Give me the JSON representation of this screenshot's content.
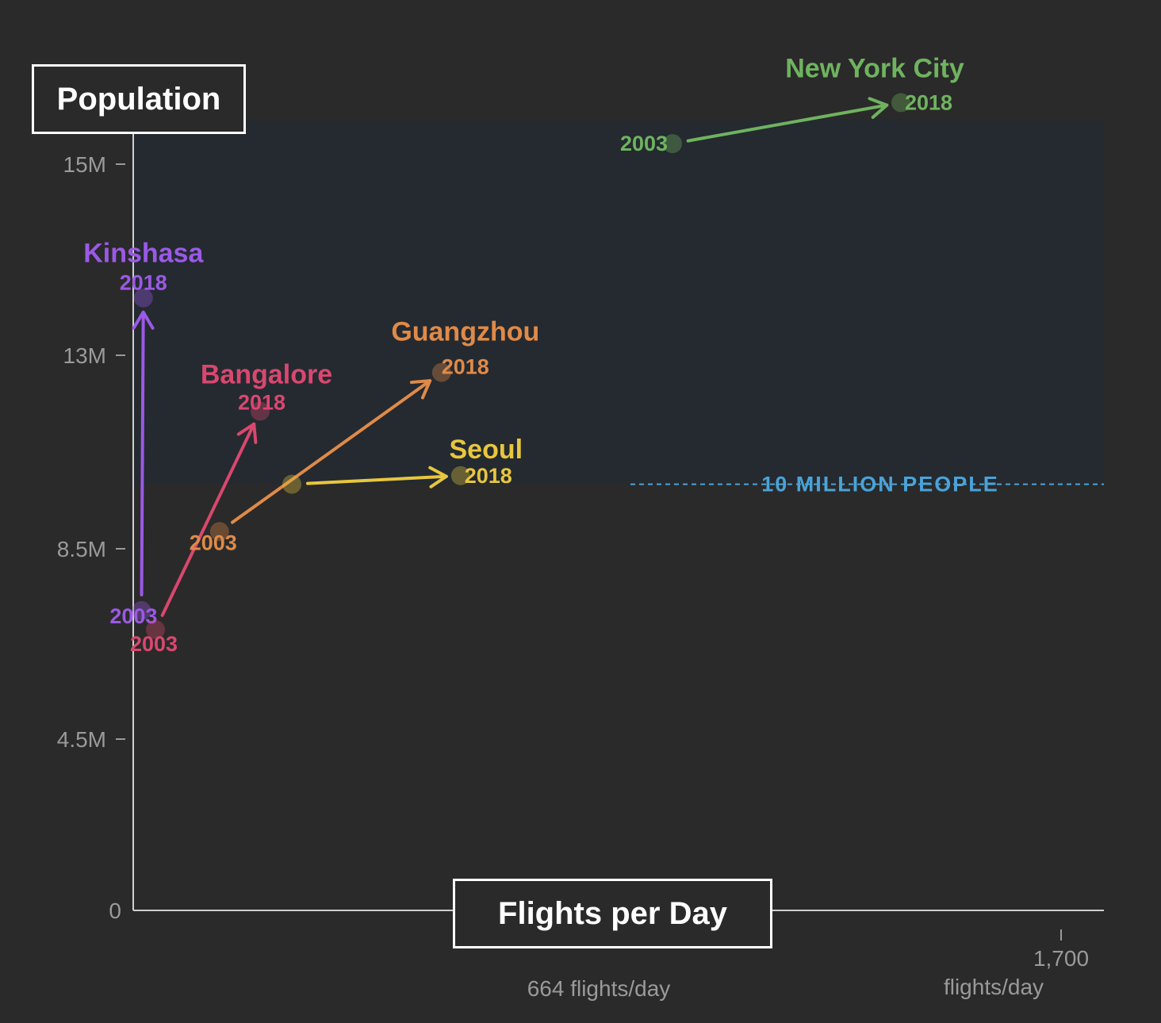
{
  "chart_data": {
    "type": "scatter",
    "ylabel": "Population",
    "xlabel": "Flights per Day",
    "y_ticks": [
      {
        "value": 15000000,
        "label": "15M"
      },
      {
        "value": 13000000,
        "label": "13M"
      },
      {
        "value": 8500000,
        "label": "8.5M"
      },
      {
        "value": 4500000,
        "label": "4.5M"
      },
      {
        "value": 0,
        "label": "0"
      }
    ],
    "x_ticks": [
      {
        "value": 664,
        "label_lines": [
          "664 flights/day"
        ]
      },
      {
        "value": 1700,
        "label_lines": [
          "1,700",
          "flights/day"
        ]
      }
    ],
    "reference_line": {
      "value": 10000000,
      "label": "10 MILLION PEOPLE",
      "color": "#4aa3d8"
    },
    "series": [
      {
        "name": "Kinshasa",
        "color": "#9b59e6",
        "start_label": "2003",
        "end_label": "2018",
        "points": [
          {
            "year": 2003,
            "x": 13,
            "y": 7200000
          },
          {
            "year": 2018,
            "x": 16,
            "y": 13600000
          }
        ]
      },
      {
        "name": "Bangalore",
        "color": "#d9476f",
        "start_label": "2003",
        "end_label": "2018",
        "points": [
          {
            "year": 2003,
            "x": 35,
            "y": 6800000
          },
          {
            "year": 2018,
            "x": 200,
            "y": 11700000
          }
        ]
      },
      {
        "name": "Guangzhou",
        "color": "#e08a48",
        "start_label": "2003",
        "end_label": "2018",
        "points": [
          {
            "year": 2003,
            "x": 136,
            "y": 8900000
          },
          {
            "year": 2018,
            "x": 486,
            "y": 12600000
          }
        ]
      },
      {
        "name": "Seoul",
        "color": "#e8c63e",
        "start_label": "",
        "end_label": "2018",
        "points": [
          {
            "year": 2003,
            "x": 250,
            "y": 10000000
          },
          {
            "year": 2018,
            "x": 516,
            "y": 10200000
          }
        ]
      },
      {
        "name": "New York City",
        "color": "#6fb35f",
        "start_label": "2003",
        "end_label": "2018",
        "points": [
          {
            "year": 2003,
            "x": 850,
            "y": 15400000
          },
          {
            "year": 2018,
            "x": 1210,
            "y": 16200000
          }
        ]
      }
    ]
  }
}
